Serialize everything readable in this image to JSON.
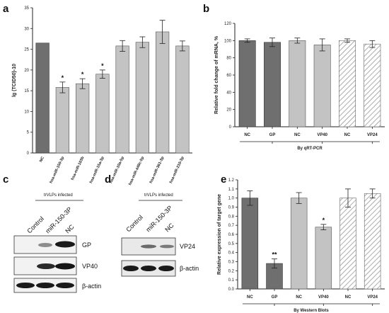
{
  "panels": {
    "a": "a",
    "b": "b",
    "c": "c",
    "d": "d",
    "e": "e"
  },
  "chart_data": [
    {
      "id": "a",
      "type": "bar",
      "ylabel": "lg (TCID50)-10",
      "ylim": [
        0,
        35
      ],
      "yticks": [
        0,
        5,
        10,
        15,
        20,
        25,
        30,
        35
      ],
      "categories": [
        "NC",
        "hsa-miR-150-3p",
        "hsa-miR-103b",
        "hsa-miR-15a-3p",
        "hsa-miR-10a-5p",
        "hsa-miR-449c-5p",
        "hsa-miR-361-3p",
        "hsa-miR-210-3p"
      ],
      "values": [
        26.5,
        15.8,
        16.7,
        19.0,
        25.8,
        26.7,
        29.2,
        25.8
      ],
      "errors": [
        0,
        1.3,
        1.2,
        1.0,
        1.3,
        1.3,
        2.8,
        1.2
      ],
      "styles": [
        "dark",
        "light",
        "light",
        "light",
        "light",
        "light",
        "light",
        "light"
      ],
      "annotations": [
        "",
        "*",
        "*",
        "*",
        "",
        "",
        "",
        ""
      ]
    },
    {
      "id": "b",
      "type": "bar",
      "ylabel": "Relative fold change of mRNA, %",
      "xlabel": "By qRT-PCR",
      "ylim": [
        0,
        120
      ],
      "yticks": [
        0,
        20,
        40,
        60,
        80,
        100,
        120
      ],
      "categories": [
        "NC",
        "GP",
        "NC",
        "VP40",
        "NC",
        "VP24"
      ],
      "values": [
        100,
        98,
        100,
        95,
        100,
        96
      ],
      "errors": [
        2,
        5,
        3,
        7,
        2,
        4
      ],
      "styles": [
        "dark",
        "dark",
        "light",
        "light",
        "hatch",
        "hatch"
      ],
      "annotations": [
        "",
        "",
        "",
        "",
        "",
        ""
      ]
    },
    {
      "id": "e",
      "type": "bar",
      "ylabel": "Relative expression of target gene",
      "xlabel": "By Western Blots",
      "ylim": [
        0,
        1.2
      ],
      "yticks": [
        "0.0",
        "0.1",
        "0.2",
        "0.3",
        "0.4",
        "0.5",
        "0.6",
        "0.7",
        "0.8",
        "0.9",
        "1.0",
        "1.1",
        "1.2"
      ],
      "categories": [
        "NC",
        "GP",
        "NC",
        "VP40",
        "NC",
        "VP24"
      ],
      "values": [
        1.0,
        0.28,
        1.0,
        0.68,
        1.0,
        1.05
      ],
      "errors": [
        0.08,
        0.05,
        0.06,
        0.03,
        0.1,
        0.05
      ],
      "styles": [
        "dark",
        "dark",
        "light",
        "light",
        "hatch",
        "hatch"
      ],
      "annotations": [
        "",
        "**",
        "",
        "*",
        "",
        ""
      ]
    }
  ],
  "blot_c": {
    "header": "trVLPs infected",
    "lanes": [
      "Control",
      "miR-150-3P",
      "NC"
    ],
    "rows": [
      "GP",
      "VP40",
      "β-actin"
    ]
  },
  "blot_d": {
    "header": "trVLPs infected",
    "lanes": [
      "Control",
      "miR-150-3P",
      "NC"
    ],
    "rows": [
      "VP24",
      "β-actin"
    ]
  }
}
